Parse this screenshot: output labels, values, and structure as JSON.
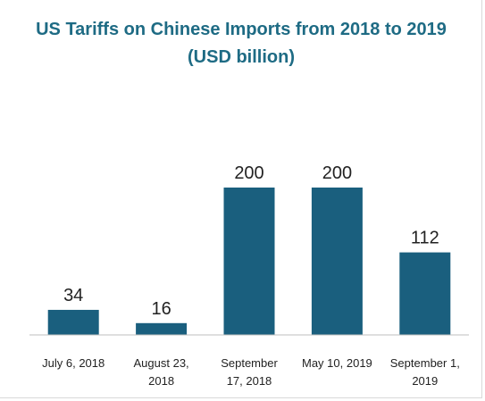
{
  "chart_data": {
    "type": "bar",
    "title": "US Tariffs on Chinese Imports from 2018 to 2019 (USD billion)",
    "categories": [
      [
        "July 6, 2018"
      ],
      [
        "August 23,",
        "2018"
      ],
      [
        "September",
        "17, 2018"
      ],
      [
        "May 10, 2019"
      ],
      [
        "September 1,",
        "2019"
      ]
    ],
    "values": [
      34,
      16,
      200,
      200,
      112
    ],
    "value_labels": [
      "34",
      "16",
      "200",
      "200",
      "112"
    ],
    "ylim": [
      0,
      230
    ],
    "grid": false,
    "legend": "none",
    "bar_color": "#1a5f7e",
    "title_color": "#1e6b84"
  }
}
